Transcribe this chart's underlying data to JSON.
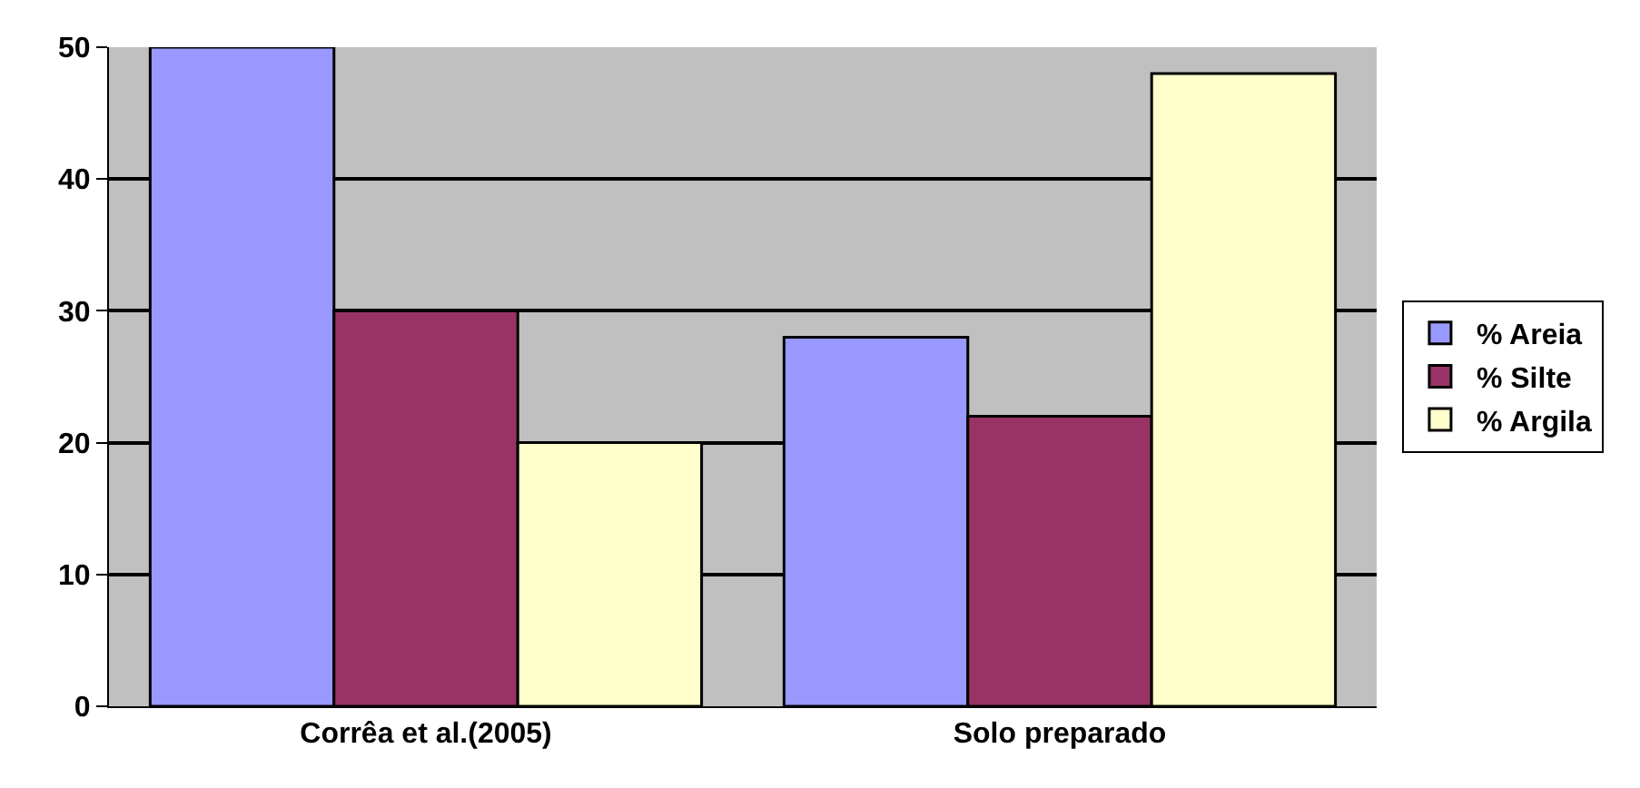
{
  "chart_data": {
    "type": "bar",
    "categories": [
      "Corrêa et al.(2005)",
      "Solo preparado"
    ],
    "series": [
      {
        "name": "% Areia",
        "color": "#9999ff",
        "values": [
          50,
          28
        ]
      },
      {
        "name": "% Silte",
        "color": "#993366",
        "values": [
          30,
          22
        ]
      },
      {
        "name": "% Argila",
        "color": "#ffffcc",
        "values": [
          20,
          48
        ]
      }
    ],
    "ylim": [
      0,
      50
    ],
    "yticks": [
      0,
      10,
      20,
      30,
      40,
      50
    ],
    "grid": "y",
    "legend": "right"
  }
}
